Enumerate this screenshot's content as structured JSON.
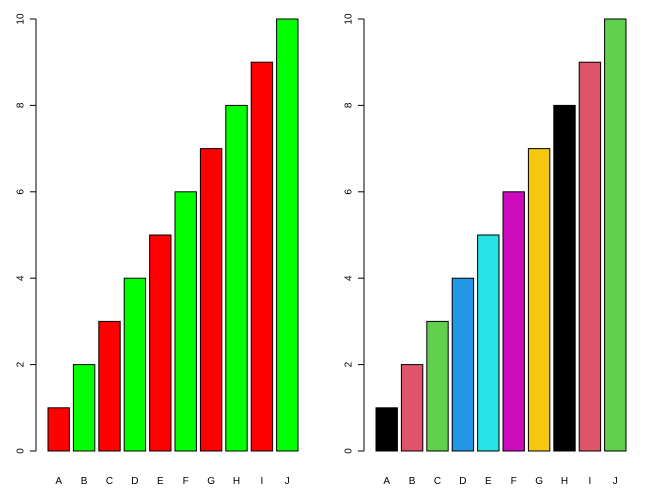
{
  "chart_data": [
    {
      "type": "bar",
      "title": "",
      "xlabel": "",
      "ylabel": "",
      "categories": [
        "A",
        "B",
        "C",
        "D",
        "E",
        "F",
        "G",
        "H",
        "I",
        "J"
      ],
      "values": [
        1,
        2,
        3,
        4,
        5,
        6,
        7,
        8,
        9,
        10
      ],
      "colors": [
        "#FF0000",
        "#00FF00",
        "#FF0000",
        "#00FF00",
        "#FF0000",
        "#00FF00",
        "#FF0000",
        "#00FF00",
        "#FF0000",
        "#00FF00"
      ],
      "ylim": [
        0,
        10
      ],
      "yticks": [
        0,
        2,
        4,
        6,
        8,
        10
      ],
      "grid": false
    },
    {
      "type": "bar",
      "title": "",
      "xlabel": "",
      "ylabel": "",
      "categories": [
        "A",
        "B",
        "C",
        "D",
        "E",
        "F",
        "G",
        "H",
        "I",
        "J"
      ],
      "values": [
        1,
        2,
        3,
        4,
        5,
        6,
        7,
        8,
        9,
        10
      ],
      "colors": [
        "#000000",
        "#DF536B",
        "#61D04F",
        "#2297E6",
        "#28E2E5",
        "#CD0BBC",
        "#F5C710",
        "#000000",
        "#DF536B",
        "#61D04F"
      ],
      "ylim": [
        0,
        10
      ],
      "yticks": [
        0,
        2,
        4,
        6,
        8,
        10
      ],
      "grid": false
    }
  ]
}
